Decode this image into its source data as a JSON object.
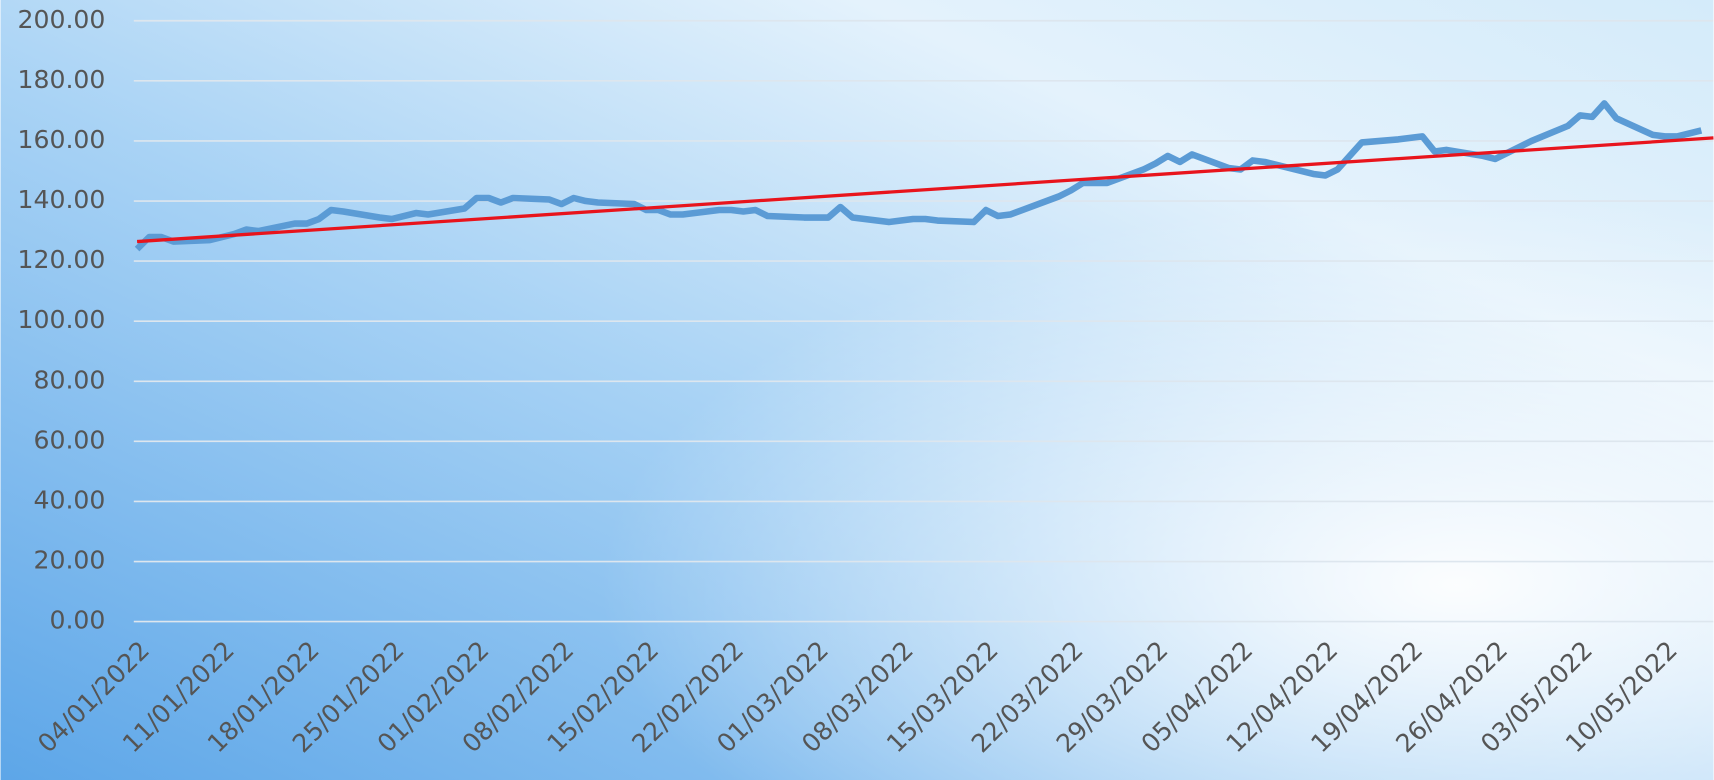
{
  "chart_data": {
    "type": "line",
    "series": [
      {
        "color": "#5b9bd5",
        "x": [
          "04/01/2022",
          "05/01/2022",
          "06/01/2022",
          "07/01/2022",
          "10/01/2022",
          "11/01/2022",
          "12/01/2022",
          "13/01/2022",
          "14/01/2022",
          "17/01/2022",
          "18/01/2022",
          "19/01/2022",
          "20/01/2022",
          "21/01/2022",
          "24/01/2022",
          "25/01/2022",
          "26/01/2022",
          "27/01/2022",
          "28/01/2022",
          "31/01/2022",
          "01/02/2022",
          "02/02/2022",
          "03/02/2022",
          "04/02/2022",
          "07/02/2022",
          "08/02/2022",
          "09/02/2022",
          "10/02/2022",
          "11/02/2022",
          "14/02/2022",
          "15/02/2022",
          "16/02/2022",
          "17/02/2022",
          "18/02/2022",
          "21/02/2022",
          "22/02/2022",
          "23/02/2022",
          "24/02/2022",
          "25/02/2022",
          "28/02/2022",
          "01/03/2022",
          "02/03/2022",
          "03/03/2022",
          "04/03/2022",
          "07/03/2022",
          "08/03/2022",
          "09/03/2022",
          "10/03/2022",
          "11/03/2022",
          "14/03/2022",
          "15/03/2022",
          "16/03/2022",
          "17/03/2022",
          "18/03/2022",
          "21/03/2022",
          "22/03/2022",
          "23/03/2022",
          "24/03/2022",
          "25/03/2022",
          "28/03/2022",
          "29/03/2022",
          "30/03/2022",
          "31/03/2022",
          "01/04/2022",
          "04/04/2022",
          "05/04/2022",
          "06/04/2022",
          "07/04/2022",
          "08/04/2022",
          "11/04/2022",
          "12/04/2022",
          "13/04/2022",
          "14/04/2022",
          "15/04/2022",
          "18/04/2022",
          "19/04/2022",
          "20/04/2022",
          "21/04/2022",
          "22/04/2022",
          "25/04/2022",
          "26/04/2022",
          "27/04/2022",
          "28/04/2022",
          "29/04/2022",
          "02/05/2022",
          "03/05/2022",
          "04/05/2022",
          "05/05/2022",
          "06/05/2022",
          "09/05/2022",
          "10/05/2022",
          "11/05/2022",
          "12/05/2022",
          "13/05/2022"
        ],
        "values": [
          124,
          128,
          128,
          126.5,
          127,
          128,
          129,
          130.5,
          130,
          132.5,
          132.5,
          134,
          137,
          136.5,
          134.5,
          134,
          135,
          136,
          135.5,
          137.5,
          141,
          141,
          139.5,
          141,
          140.5,
          139,
          141,
          140,
          139.5,
          139,
          137,
          137,
          135.5,
          135.5,
          137,
          137,
          136.5,
          137,
          135,
          134.5,
          134.5,
          134.5,
          138,
          134.5,
          133,
          133.5,
          134,
          134,
          133.5,
          133,
          137,
          135,
          135.5,
          137,
          141.5,
          143.5,
          146,
          146,
          146,
          150.5,
          152.5,
          155,
          153,
          155.5,
          151,
          150.5,
          153.5,
          153,
          152,
          149,
          148.5,
          150.5,
          155,
          159.5,
          160.5,
          161,
          161.5,
          156.5,
          157,
          155,
          154,
          156,
          158,
          160,
          165,
          168.5,
          168,
          172.5,
          167.5,
          162,
          161.5,
          161.5,
          162.5,
          163.5
        ]
      },
      {
        "color": "#e8141c",
        "x": [
          "04/01/2022",
          "14/05/2022"
        ],
        "values": [
          126.5,
          161
        ]
      }
    ],
    "xlim": [
      "04/01/2022",
      "14/05/2022"
    ],
    "xticks": [
      "04/01/2022",
      "11/01/2022",
      "18/01/2022",
      "25/01/2022",
      "01/02/2022",
      "08/02/2022",
      "15/02/2022",
      "22/02/2022",
      "01/03/2022",
      "08/03/2022",
      "15/03/2022",
      "22/03/2022",
      "29/03/2022",
      "05/04/2022",
      "12/04/2022",
      "19/04/2022",
      "26/04/2022",
      "03/05/2022",
      "10/05/2022"
    ],
    "ylim": [
      0,
      200
    ],
    "yticks": [
      {
        "value": 0,
        "label": "0.00"
      },
      {
        "value": 20,
        "label": "20.00"
      },
      {
        "value": 40,
        "label": "40.00"
      },
      {
        "value": 60,
        "label": "60.00"
      },
      {
        "value": 80,
        "label": "80.00"
      },
      {
        "value": 100,
        "label": "100.00"
      },
      {
        "value": 120,
        "label": "120.00"
      },
      {
        "value": 140,
        "label": "140.00"
      },
      {
        "value": 160,
        "label": "160.00"
      },
      {
        "value": 180,
        "label": "180.00"
      },
      {
        "value": 200,
        "label": "200.00"
      }
    ],
    "grid": true
  }
}
